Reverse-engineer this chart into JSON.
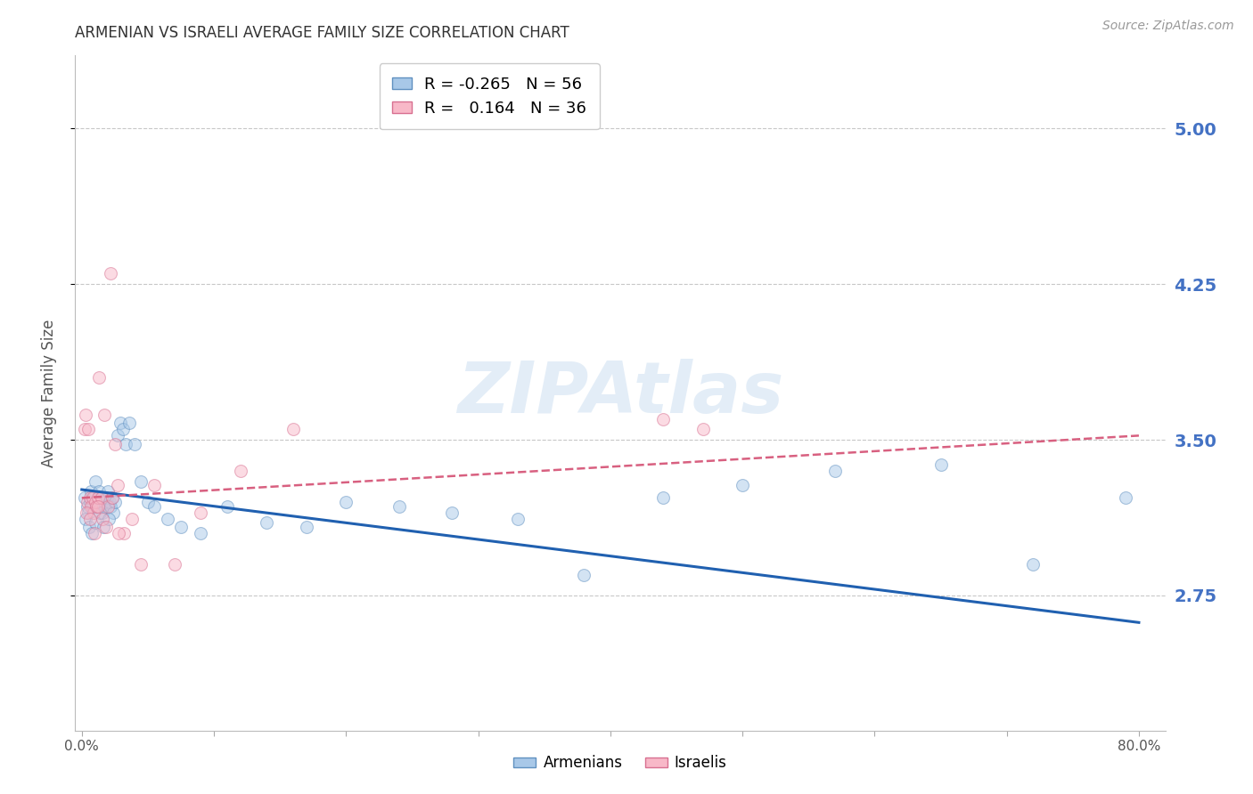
{
  "title": "ARMENIAN VS ISRAELI AVERAGE FAMILY SIZE CORRELATION CHART",
  "source": "Source: ZipAtlas.com",
  "ylabel": "Average Family Size",
  "yticks": [
    2.75,
    3.5,
    4.25,
    5.0
  ],
  "ylim": [
    2.1,
    5.35
  ],
  "xlim": [
    -0.5,
    82
  ],
  "xlabel_vals": [
    0,
    10,
    20,
    30,
    40,
    50,
    60,
    70,
    80
  ],
  "xlabel_ticks": [
    "0.0%",
    "",
    "",
    "",
    "",
    "",
    "",
    "",
    "80.0%"
  ],
  "armenians_x": [
    0.2,
    0.4,
    0.5,
    0.6,
    0.7,
    0.8,
    0.9,
    1.0,
    1.1,
    1.2,
    1.3,
    1.4,
    1.5,
    1.6,
    1.7,
    1.8,
    1.9,
    2.0,
    2.1,
    2.2,
    2.3,
    2.4,
    2.5,
    2.7,
    2.9,
    3.1,
    3.3,
    3.6,
    4.0,
    4.5,
    5.0,
    5.5,
    6.5,
    7.5,
    9.0,
    11.0,
    14.0,
    17.0,
    20.0,
    24.0,
    28.0,
    33.0,
    38.0,
    44.0,
    50.0,
    57.0,
    65.0,
    72.0,
    79.0,
    0.3,
    0.55,
    0.75,
    1.05,
    1.35,
    1.65,
    2.05
  ],
  "armenians_y": [
    3.22,
    3.18,
    3.15,
    3.2,
    3.25,
    3.18,
    3.22,
    3.3,
    3.18,
    3.22,
    3.25,
    3.18,
    3.22,
    3.15,
    3.2,
    3.18,
    3.22,
    3.25,
    3.2,
    3.18,
    3.22,
    3.15,
    3.2,
    3.52,
    3.58,
    3.55,
    3.48,
    3.58,
    3.48,
    3.3,
    3.2,
    3.18,
    3.12,
    3.08,
    3.05,
    3.18,
    3.1,
    3.08,
    3.2,
    3.18,
    3.15,
    3.12,
    2.85,
    3.22,
    3.28,
    3.35,
    3.38,
    2.9,
    3.22,
    3.12,
    3.08,
    3.05,
    3.1,
    3.15,
    3.08,
    3.12
  ],
  "israelis_x": [
    0.2,
    0.3,
    0.4,
    0.5,
    0.6,
    0.7,
    0.8,
    0.9,
    1.0,
    1.1,
    1.2,
    1.3,
    1.5,
    1.7,
    2.0,
    2.3,
    2.7,
    3.2,
    3.8,
    4.5,
    5.5,
    7.0,
    9.0,
    12.0,
    16.0,
    2.5,
    2.8,
    44.0,
    47.0,
    0.35,
    0.65,
    0.95,
    1.25,
    1.55,
    1.85,
    2.15
  ],
  "israelis_y": [
    3.55,
    3.62,
    3.2,
    3.55,
    3.22,
    3.18,
    3.22,
    3.15,
    3.2,
    3.18,
    3.22,
    3.8,
    3.22,
    3.62,
    3.18,
    3.22,
    3.28,
    3.05,
    3.12,
    2.9,
    3.28,
    2.9,
    3.15,
    3.35,
    3.55,
    3.48,
    3.05,
    3.6,
    3.55,
    3.15,
    3.12,
    3.05,
    3.18,
    3.12,
    3.08,
    4.3
  ],
  "armenian_color": "#A8C8E8",
  "armenian_edge_color": "#6090C0",
  "israeli_color": "#F8B8C8",
  "israeli_edge_color": "#D87090",
  "armenian_line_color": "#2060B0",
  "israeli_line_color": "#D86080",
  "legend_armenian_R": "-0.265",
  "legend_armenian_N": "56",
  "legend_israeli_R": "0.164",
  "legend_israeli_N": "36",
  "watermark": "ZIPAtlas",
  "background_color": "#FFFFFF",
  "grid_color": "#C8C8C8",
  "title_color": "#333333",
  "right_ytick_color": "#4472C4",
  "marker_size": 100,
  "marker_alpha": 0.5,
  "armenian_trend_x": [
    0,
    80
  ],
  "armenian_trend_y": [
    3.26,
    2.62
  ],
  "israeli_trend_x": [
    0,
    80
  ],
  "israeli_trend_y": [
    3.22,
    3.52
  ]
}
